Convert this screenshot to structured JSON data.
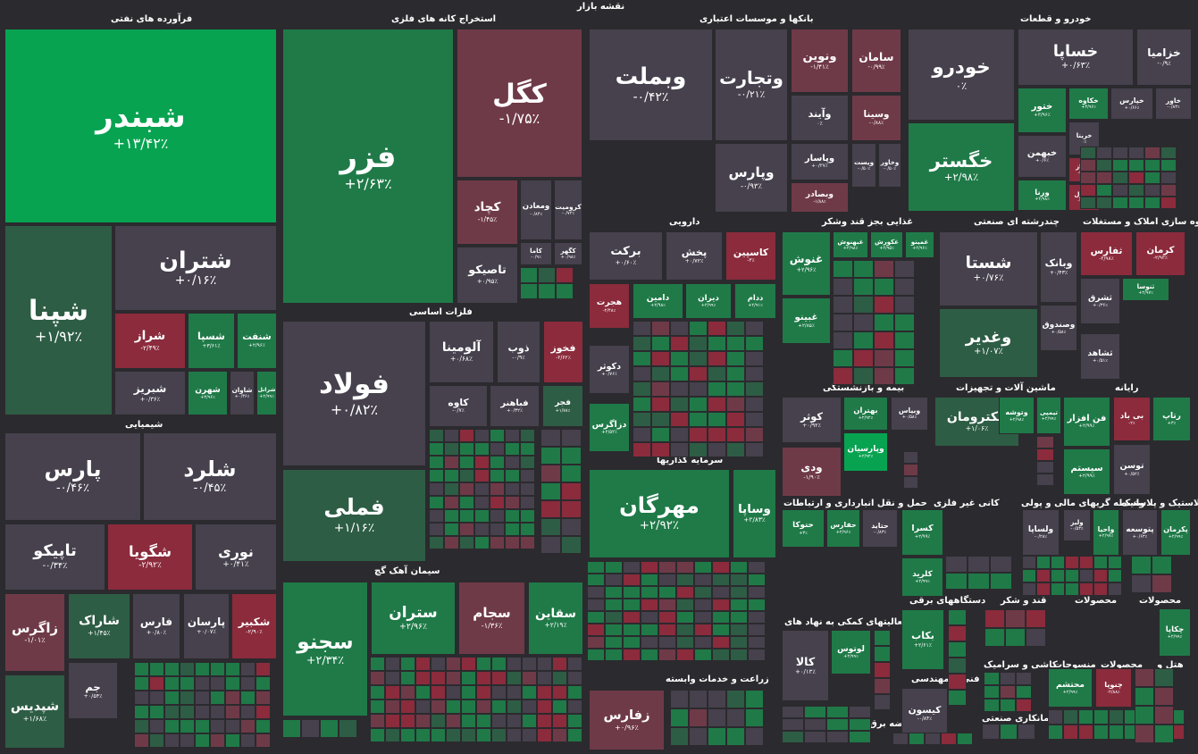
{
  "title": "نقشه بازار",
  "colors": {
    "background": "#2b2a2e",
    "up_strong": "#07a351",
    "up": "#1f7a48",
    "up_mild": "#2e5d45",
    "neutral": "#46414d",
    "down": "#8b2b3c",
    "down_mild": "#6f3a48"
  },
  "sectors": [
    {
      "name": "فرآورده های نفتی"
    },
    {
      "name": "استخراج کانه های فلزی"
    },
    {
      "name": "بانکها و موسسات اعتباری"
    },
    {
      "name": "خودرو و قطعات"
    },
    {
      "name": "دارویی"
    },
    {
      "name": "غذایی بجز قند وشکر"
    },
    {
      "name": "چندرشته ای صنعتی"
    },
    {
      "name": "انبوه سازی املاک و مستغلات"
    },
    {
      "name": "فلزات اساسی"
    },
    {
      "name": "شیمیایی"
    },
    {
      "name": "سرمایه گذاریها"
    },
    {
      "name": "بیمه و بازنشستگی"
    },
    {
      "name": "ماشین آلات و تجهیزات"
    },
    {
      "name": "رایانه"
    },
    {
      "name": "سیمان آهک گچ"
    },
    {
      "name": "حمل و نقل انبارداری و ارتباطات"
    },
    {
      "name": "کانی غیر فلزی"
    },
    {
      "name": "واسطه گریهای مالی و پولی"
    },
    {
      "name": "لاستیک و پلاستیک"
    },
    {
      "name": "دستگاههای برقی"
    },
    {
      "name": "قند و شکر"
    },
    {
      "name": "محصولات"
    },
    {
      "name": "فعالیتهای کمکی به نهاد های"
    },
    {
      "name": "زراعت و خدمات وابسته"
    },
    {
      "name": "فنی و مهندسی"
    },
    {
      "name": "کاشی و سرامیک"
    },
    {
      "name": "منسوجات"
    },
    {
      "name": "محصولات"
    },
    {
      "name": "هتل و"
    },
    {
      "name": "پیمانکاری صنعتی"
    },
    {
      "name": "عرضه برق،گاز،بخار و آب گرم"
    }
  ],
  "tiles": [
    {
      "sym": "شبندر",
      "chg": "+۱۳/۴۲٪",
      "tone": "up_strong"
    },
    {
      "sym": "شپنا",
      "chg": "+۱/۹۲٪",
      "tone": "up_mild"
    },
    {
      "sym": "شتران",
      "chg": "+۰/۱۶٪",
      "tone": "neutral"
    },
    {
      "sym": "شراز",
      "chg": "-۲/۴۹٪",
      "tone": "down"
    },
    {
      "sym": "شسپا",
      "chg": "+۳/۶۱٪",
      "tone": "up"
    },
    {
      "sym": "شنفت",
      "chg": "+۲/۹۶٪",
      "tone": "up"
    },
    {
      "sym": "شبریز",
      "chg": "+۰/۳۶٪",
      "tone": "neutral"
    },
    {
      "sym": "شهرن",
      "chg": "+۳/۹۶٪",
      "tone": "up"
    },
    {
      "sym": "شاوان",
      "chg": "+۰/۳۶٪",
      "tone": "neutral"
    },
    {
      "sym": "شرانل",
      "chg": "+۲/۹۹٪",
      "tone": "up"
    },
    {
      "sym": "فزر",
      "chg": "+۲/۶۳٪",
      "tone": "up"
    },
    {
      "sym": "کگل",
      "chg": "-۱/۷۵٪",
      "tone": "down_mild"
    },
    {
      "sym": "کچاد",
      "chg": "-۱/۴۵٪",
      "tone": "down_mild"
    },
    {
      "sym": "ومعادن",
      "chg": "-۰/۸۴٪",
      "tone": "neutral"
    },
    {
      "sym": "کرومیت",
      "chg": "-۰/۷۲٪",
      "tone": "neutral"
    },
    {
      "sym": "کاما",
      "chg": "-۰/۹٪",
      "tone": "neutral"
    },
    {
      "sym": "کگهر",
      "chg": "+۰/۹۸٪",
      "tone": "neutral"
    },
    {
      "sym": "تاصیکو",
      "chg": "+۰/۹۵٪",
      "tone": "neutral"
    },
    {
      "sym": "وبملت",
      "chg": "-۰/۴۲٪",
      "tone": "neutral"
    },
    {
      "sym": "وتجارت",
      "chg": "-۰/۲۱٪",
      "tone": "neutral"
    },
    {
      "sym": "ونوین",
      "chg": "-۱/۴۱٪",
      "tone": "down_mild"
    },
    {
      "sym": "سامان",
      "chg": "-۰/۹۹٪",
      "tone": "down_mild"
    },
    {
      "sym": "وآیند",
      "chg": "۰٪",
      "tone": "neutral"
    },
    {
      "sym": "وسینا",
      "chg": "-۰/۸۸٪",
      "tone": "down_mild"
    },
    {
      "sym": "وپارس",
      "chg": "-۰/۹۳٪",
      "tone": "neutral"
    },
    {
      "sym": "وپاسار",
      "chg": "+۰/۳۷٪",
      "tone": "neutral"
    },
    {
      "sym": "ویست",
      "chg": "-۰/۵۰٪",
      "tone": "neutral"
    },
    {
      "sym": "وخاور",
      "chg": "-۰/۵۰٪",
      "tone": "neutral"
    },
    {
      "sym": "وبصادر",
      "chg": "-۱/۸۸٪",
      "tone": "down_mild"
    },
    {
      "sym": "خودرو",
      "chg": "۰٪",
      "tone": "neutral"
    },
    {
      "sym": "خگستر",
      "chg": "+۲/۹۸٪",
      "tone": "up"
    },
    {
      "sym": "خساپا",
      "chg": "+۰/۶۳٪",
      "tone": "neutral"
    },
    {
      "sym": "خزامیا",
      "chg": "-۰/۹٪",
      "tone": "neutral"
    },
    {
      "sym": "ختور",
      "chg": "+۳/۹۶٪",
      "tone": "up"
    },
    {
      "sym": "خکاوه",
      "chg": "+۳/۹۶٪",
      "tone": "up"
    },
    {
      "sym": "خپارس",
      "chg": "+۰/۶۶٪",
      "tone": "neutral"
    },
    {
      "sym": "خاور",
      "chg": "-۰/۸۳٪",
      "tone": "neutral"
    },
    {
      "sym": "خبهمن",
      "chg": "+۰/۶٪",
      "tone": "neutral"
    },
    {
      "sym": "خریتا",
      "chg": "۰٪",
      "tone": "neutral"
    },
    {
      "sym": "خساز",
      "chg": "-۲/۸۳٪",
      "tone": "down"
    },
    {
      "sym": "خدیزل",
      "chg": "-۲/۹۸٪",
      "tone": "down"
    },
    {
      "sym": "ورنا",
      "chg": "+۲/۹۸٪",
      "tone": "up"
    },
    {
      "sym": "برکت",
      "chg": "+۰/۶۰٪",
      "tone": "neutral"
    },
    {
      "sym": "پخش",
      "chg": "+۰/۷۲٪",
      "tone": "neutral"
    },
    {
      "sym": "کاسپین",
      "chg": "-۳٪",
      "tone": "down"
    },
    {
      "sym": "دامین",
      "chg": "+۲/۹۸٪",
      "tone": "up"
    },
    {
      "sym": "دیران",
      "chg": "+۲/۹۹٪",
      "tone": "up"
    },
    {
      "sym": "ددام",
      "chg": "+۲/۹۱٪",
      "tone": "up"
    },
    {
      "sym": "هجرت",
      "chg": "-۲/۴۸٪",
      "tone": "down"
    },
    {
      "sym": "دکوثر",
      "chg": "+۰/۷۶٪",
      "tone": "neutral"
    },
    {
      "sym": "دزاگرس",
      "chg": "+۲/۵۲٪",
      "tone": "up"
    },
    {
      "sym": "غنوش",
      "chg": "+۲/۹۶٪",
      "tone": "up"
    },
    {
      "sym": "غبهنوش",
      "chg": "+۲/۹۸٪",
      "tone": "up"
    },
    {
      "sym": "غکورش",
      "chg": "+۲/۹۵٪",
      "tone": "up"
    },
    {
      "sym": "غمینو",
      "chg": "+۲/۹۶٪",
      "tone": "up"
    },
    {
      "sym": "غبینو",
      "chg": "+۲/۸۵٪",
      "tone": "up"
    },
    {
      "sym": "شستا",
      "chg": "+۰/۷۶٪",
      "tone": "neutral"
    },
    {
      "sym": "وغدیر",
      "chg": "+۱/۰۷٪",
      "tone": "up_mild"
    },
    {
      "sym": "وبانک",
      "chg": "+۰/۴۳٪",
      "tone": "neutral"
    },
    {
      "sym": "وصندوق",
      "chg": "+۰/۵۸٪",
      "tone": "neutral"
    },
    {
      "sym": "ثفارس",
      "chg": "-۲/۹۸٪",
      "tone": "down"
    },
    {
      "sym": "کرمان",
      "chg": "-۲/۹۳٪",
      "tone": "down"
    },
    {
      "sym": "ثنوسا",
      "chg": "+۲/۹۷٪",
      "tone": "up"
    },
    {
      "sym": "ثشرق",
      "chg": "+۰/۳۶٪",
      "tone": "neutral"
    },
    {
      "sym": "ثشاهد",
      "chg": "+۰/۵۱٪",
      "tone": "neutral"
    },
    {
      "sym": "فولاد",
      "chg": "+۰/۸۲٪",
      "tone": "neutral"
    },
    {
      "sym": "فملی",
      "chg": "+۱/۱۶٪",
      "tone": "up_mild"
    },
    {
      "sym": "آلومینا",
      "chg": "+۰/۶۸٪",
      "tone": "neutral"
    },
    {
      "sym": "ذوب",
      "chg": "-۰/۹٪",
      "tone": "neutral"
    },
    {
      "sym": "فخوز",
      "chg": "-۲/۶۲٪",
      "tone": "down"
    },
    {
      "sym": "کاوه",
      "chg": "-۰/۷٪",
      "tone": "neutral"
    },
    {
      "sym": "فباهنر",
      "chg": "+۰/۳۲٪",
      "tone": "neutral"
    },
    {
      "sym": "فجر",
      "chg": "+۱/۷۸٪",
      "tone": "up_mild"
    },
    {
      "sym": "پارس",
      "chg": "-۰/۴۶٪",
      "tone": "neutral"
    },
    {
      "sym": "شلرد",
      "chg": "-۰/۴۵٪",
      "tone": "neutral"
    },
    {
      "sym": "تاپیکو",
      "chg": "-۰/۳۴٪",
      "tone": "neutral"
    },
    {
      "sym": "شگویا",
      "chg": "-۲/۹۲٪",
      "tone": "down"
    },
    {
      "sym": "نوری",
      "chg": "+۰/۴۱٪",
      "tone": "neutral"
    },
    {
      "sym": "زاگرس",
      "chg": "-۱/۰۱٪",
      "tone": "down_mild"
    },
    {
      "sym": "شاراک",
      "chg": "+۱/۴۵٪",
      "tone": "up_mild"
    },
    {
      "sym": "فارس",
      "chg": "+۰/۸۰٪",
      "tone": "neutral"
    },
    {
      "sym": "پارسان",
      "chg": "+۰/۰۷٪",
      "tone": "neutral"
    },
    {
      "sym": "شکبیر",
      "chg": "-۲/۹۰٪",
      "tone": "down"
    },
    {
      "sym": "جم",
      "chg": "+۰/۵۴٪",
      "tone": "neutral"
    },
    {
      "sym": "شپدیس",
      "chg": "+۱/۶۸٪",
      "tone": "up_mild"
    },
    {
      "sym": "مهرگان",
      "chg": "+۲/۹۲٪",
      "tone": "up"
    },
    {
      "sym": "وساپا",
      "chg": "+۲/۸۳٪",
      "tone": "up"
    },
    {
      "sym": "کوثر",
      "chg": "+۰/۹۲٪",
      "tone": "neutral"
    },
    {
      "sym": "بهتران",
      "chg": "+۲/۹۲٪",
      "tone": "up"
    },
    {
      "sym": "وبیاس",
      "chg": "+۰/۵۸٪",
      "tone": "neutral"
    },
    {
      "sym": "وپارسیان",
      "chg": "+۲/۹۲٪",
      "tone": "up_strong"
    },
    {
      "sym": "ودی",
      "chg": "-۱/۹۰٪",
      "tone": "down_mild"
    },
    {
      "sym": "الکترومان",
      "chg": "+۱/۰۶٪",
      "tone": "up_mild"
    },
    {
      "sym": "وتوشه",
      "chg": "+۲/۹۸٪",
      "tone": "up"
    },
    {
      "sym": "تیمپی",
      "chg": "+۲/۹۹٪",
      "tone": "up"
    },
    {
      "sym": "فن افزار",
      "chg": "+۲/۹۹٪",
      "tone": "up"
    },
    {
      "sym": "بی باد",
      "chg": "-۲٪",
      "tone": "down"
    },
    {
      "sym": "رتاپ",
      "chg": "+۳٪",
      "tone": "up"
    },
    {
      "sym": "سیستم",
      "chg": "+۲/۹۹٪",
      "tone": "up"
    },
    {
      "sym": "توسن",
      "chg": "+۰/۵۲٪",
      "tone": "neutral"
    },
    {
      "sym": "سجنو",
      "chg": "+۲/۳۴٪",
      "tone": "up"
    },
    {
      "sym": "ستران",
      "chg": "+۲/۹۶٪",
      "tone": "up"
    },
    {
      "sym": "سجام",
      "chg": "-۱/۳۶٪",
      "tone": "down_mild"
    },
    {
      "sym": "سقاین",
      "chg": "+۲/۱۹٪",
      "tone": "up"
    },
    {
      "sym": "حتوکا",
      "chg": "+۳٪",
      "tone": "up"
    },
    {
      "sym": "حفارس",
      "chg": "+۲/۹۶٪",
      "tone": "up"
    },
    {
      "sym": "حتاید",
      "chg": "-۰/۸۳٪",
      "tone": "neutral"
    },
    {
      "sym": "کسرا",
      "chg": "+۲/۹۹٪",
      "tone": "up"
    },
    {
      "sym": "کلرید",
      "chg": "+۲/۹۹٪",
      "tone": "up"
    },
    {
      "sym": "ولساپا",
      "chg": "-۰/۲۸٪",
      "tone": "neutral"
    },
    {
      "sym": "ولیز",
      "chg": "-۰/۵۳٪",
      "tone": "neutral"
    },
    {
      "sym": "واحیا",
      "chg": "+۲/۹۷٪",
      "tone": "up"
    },
    {
      "sym": "پتوسعه",
      "chg": "+۰/۶۳٪",
      "tone": "neutral"
    },
    {
      "sym": "پکرمان",
      "chg": "+۲/۹۹٪",
      "tone": "up"
    },
    {
      "sym": "بکاب",
      "chg": "+۲/۶۱٪",
      "tone": "up"
    },
    {
      "sym": "لوتوس",
      "chg": "+۲/۹۹٪",
      "tone": "up"
    },
    {
      "sym": "کالا",
      "chg": "+۰/۱۳٪",
      "tone": "neutral"
    },
    {
      "sym": "زفارس",
      "chg": "+۰/۹۶٪",
      "tone": "down_mild"
    },
    {
      "sym": "کیسون",
      "chg": "-۰/۸۴٪",
      "tone": "neutral"
    },
    {
      "sym": "محتشم",
      "chg": "+۲/۹۹٪",
      "tone": "up"
    },
    {
      "sym": "چنوپا",
      "chg": "-۲/۸۸٪",
      "tone": "down"
    },
    {
      "sym": "چکاپا",
      "chg": "+۲/۹۹٪",
      "tone": "up"
    },
    {
      "sym": "ساینا",
      "chg": "+۲/۹۴٪",
      "tone": "up"
    }
  ]
}
